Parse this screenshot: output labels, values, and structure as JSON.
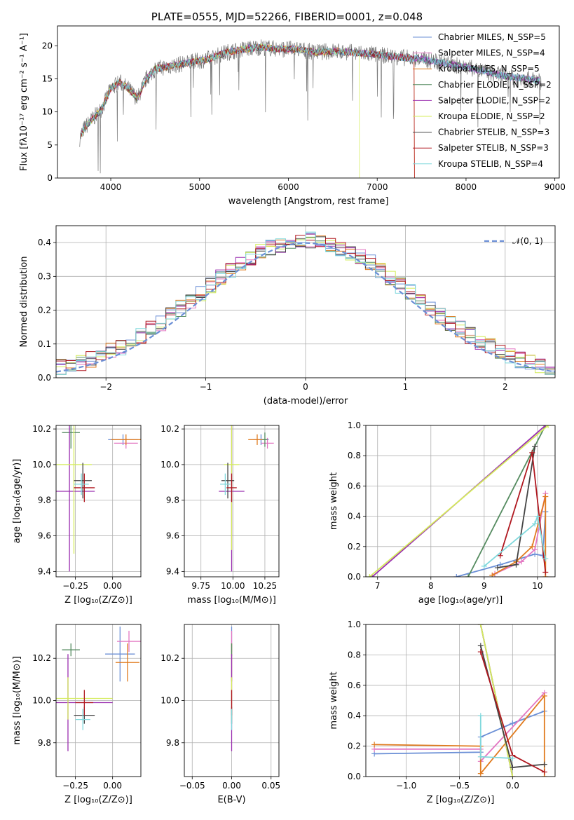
{
  "chart_data": [
    {
      "id": "spectrum",
      "type": "line",
      "title": "PLATE=0555, MJD=52266, FIBERID=0001, z=0.048",
      "xlabel": "wavelength [Angstrom, rest frame]",
      "ylabel": "Flux [fλ10⁻¹⁷ erg cm⁻² s⁻¹ A⁻¹]",
      "xlim": [
        3400,
        9050
      ],
      "ylim": [
        0,
        23
      ],
      "xticks": [
        4000,
        5000,
        6000,
        7000,
        8000,
        9000
      ],
      "yticks": [
        0,
        5,
        10,
        15,
        20
      ],
      "grid": false,
      "legend_position": "top-right",
      "data_envelope": {
        "x": [
          3650,
          3700,
          3800,
          3900,
          4000,
          4100,
          4200,
          4300,
          4400,
          4500,
          4700,
          4900,
          5100,
          5300,
          5500,
          5700,
          5900,
          6100,
          6300,
          6500,
          6700,
          6900,
          7100,
          7300,
          7500,
          7700,
          7900,
          8100,
          8300,
          8500,
          8700,
          8850
        ],
        "y": [
          6.0,
          7.5,
          9.0,
          10.5,
          13.5,
          14.5,
          13.5,
          12.0,
          15.0,
          16.5,
          17.0,
          17.5,
          18.0,
          19.0,
          19.5,
          19.8,
          19.5,
          19.5,
          19.0,
          19.2,
          19.0,
          18.8,
          18.5,
          18.2,
          18.0,
          17.5,
          17.0,
          16.5,
          15.8,
          15.3,
          15.0,
          14.6
        ]
      },
      "series": [
        {
          "name": "Chabrier MILES, N_SSP=5",
          "color": "#6b8fd6"
        },
        {
          "name": "Salpeter MILES, N_SSP=4",
          "color": "#e377c2"
        },
        {
          "name": "Kroupa MILES, N_SSP=5",
          "color": "#e07b1f"
        },
        {
          "name": "Chabrier ELODIE, N_SSP=2",
          "color": "#558b60"
        },
        {
          "name": "Salpeter ELODIE, N_SSP=2",
          "color": "#9b30b0"
        },
        {
          "name": "Kroupa ELODIE, N_SSP=2",
          "color": "#d4ec5a"
        },
        {
          "name": "Chabrier STELIB, N_SSP=3",
          "color": "#444444"
        },
        {
          "name": "Salpeter STELIB, N_SSP=3",
          "color": "#b01820"
        },
        {
          "name": "Kroupa STELIB, N_SSP=4",
          "color": "#7fd8dc"
        }
      ]
    },
    {
      "id": "residuals",
      "type": "line",
      "xlabel": "(data-model)/error",
      "ylabel": "Normed distribution",
      "xlim": [
        -2.5,
        2.5
      ],
      "ylim": [
        0,
        0.45
      ],
      "xticks": [
        -2,
        -1,
        0,
        1,
        2
      ],
      "yticks": [
        0.0,
        0.1,
        0.2,
        0.3,
        0.4
      ],
      "grid": true,
      "legend_position": "top-right",
      "reference_curve": {
        "name": "𝒩(0, 1)",
        "color": "#6b8fd6",
        "style": "dashed"
      },
      "histogram_bin_width": 0.1
    },
    {
      "id": "age_vs_Z",
      "type": "scatter",
      "xlabel": "Z [log₁₀(Z/Z⊙)]",
      "ylabel": "age  [log₁₀(age/yr)]",
      "xlim": [
        -0.38,
        0.19
      ],
      "ylim": [
        9.37,
        10.22
      ],
      "xticks": [
        -0.25,
        0.0
      ],
      "yticks": [
        9.4,
        9.6,
        9.8,
        10.0,
        10.2
      ],
      "grid": true,
      "points": [
        {
          "series": 0,
          "x": 0.07,
          "y": 10.14,
          "xerr": 0.1,
          "yerr": 0.03
        },
        {
          "series": 1,
          "x": 0.09,
          "y": 10.12,
          "xerr": 0.08,
          "yerr": 0.03
        },
        {
          "series": 2,
          "x": 0.09,
          "y": 10.14,
          "xerr": 0.1,
          "yerr": 0.03
        },
        {
          "series": 3,
          "x": -0.28,
          "y": 10.18,
          "xerr": 0.06,
          "yerr": 0.09
        },
        {
          "series": 4,
          "x": -0.29,
          "y": 9.85,
          "xerr": 0.17,
          "yerr": 0.45
        },
        {
          "series": 5,
          "x": -0.26,
          "y": 10.0,
          "xerr": 0.12,
          "yerr": 0.5
        },
        {
          "series": 6,
          "x": -0.2,
          "y": 9.91,
          "xerr": 0.06,
          "yerr": 0.1
        },
        {
          "series": 7,
          "x": -0.19,
          "y": 9.87,
          "xerr": 0.07,
          "yerr": 0.08
        },
        {
          "series": 8,
          "x": -0.21,
          "y": 9.89,
          "xerr": 0.05,
          "yerr": 0.06
        }
      ]
    },
    {
      "id": "age_vs_mass",
      "type": "scatter",
      "xlabel": "mass [log₁₀(M/M⊙)]",
      "xlim": [
        9.62,
        10.36
      ],
      "ylim": [
        9.37,
        10.22
      ],
      "xticks": [
        9.75,
        10.0,
        10.25
      ],
      "yticks": [
        9.4,
        9.6,
        9.8,
        10.0,
        10.2
      ],
      "grid": true,
      "points": [
        {
          "series": 0,
          "x": 10.22,
          "y": 10.14,
          "xerr": 0.06,
          "yerr": 0.03
        },
        {
          "series": 1,
          "x": 10.27,
          "y": 10.12,
          "xerr": 0.05,
          "yerr": 0.03
        },
        {
          "series": 2,
          "x": 10.19,
          "y": 10.14,
          "xerr": 0.07,
          "yerr": 0.03
        },
        {
          "series": 3,
          "x": 10.25,
          "y": 10.14,
          "xerr": 0.02,
          "yerr": 0.04
        },
        {
          "series": 4,
          "x": 9.99,
          "y": 9.85,
          "xerr": 0.1,
          "yerr": 0.45
        },
        {
          "series": 5,
          "x": 9.99,
          "y": 10.0,
          "xerr": 0.06,
          "yerr": 0.48
        },
        {
          "series": 6,
          "x": 9.96,
          "y": 9.91,
          "xerr": 0.05,
          "yerr": 0.1
        },
        {
          "series": 7,
          "x": 9.99,
          "y": 9.87,
          "xerr": 0.04,
          "yerr": 0.08
        },
        {
          "series": 8,
          "x": 9.94,
          "y": 9.89,
          "xerr": 0.04,
          "yerr": 0.06
        }
      ]
    },
    {
      "id": "weight_vs_age",
      "type": "line",
      "xlabel": "age  [log₁₀(age/yr)]",
      "ylabel": "mass weight",
      "xlim": [
        6.78,
        10.33
      ],
      "ylim": [
        0,
        1
      ],
      "xticks": [
        7,
        8,
        9,
        10
      ],
      "yticks": [
        0.0,
        0.2,
        0.4,
        0.6,
        0.8,
        1.0
      ],
      "grid": true,
      "series": [
        {
          "series": 0,
          "x": [
            8.48,
            9.3,
            9.95,
            10.1,
            10.15
          ],
          "y": [
            0.0,
            0.08,
            0.15,
            0.14,
            0.43
          ]
        },
        {
          "series": 1,
          "x": [
            9.2,
            9.7,
            9.95,
            10.15
          ],
          "y": [
            0.02,
            0.1,
            0.18,
            0.55
          ]
        },
        {
          "series": 2,
          "x": [
            9.15,
            9.6,
            9.9,
            10.15,
            10.15
          ],
          "y": [
            0.01,
            0.1,
            0.2,
            0.53,
            0.0
          ]
        },
        {
          "series": 3,
          "x": [
            8.7,
            10.15
          ],
          "y": [
            0.0,
            1.0
          ]
        },
        {
          "series": 4,
          "x": [
            6.9,
            10.15
          ],
          "y": [
            0.0,
            1.0
          ]
        },
        {
          "series": 5,
          "x": [
            6.85,
            10.2
          ],
          "y": [
            0.0,
            1.0
          ]
        },
        {
          "series": 6,
          "x": [
            9.25,
            9.6,
            9.95
          ],
          "y": [
            0.06,
            0.08,
            0.86
          ]
        },
        {
          "series": 7,
          "x": [
            9.3,
            9.9,
            10.15
          ],
          "y": [
            0.14,
            0.82,
            0.03
          ]
        },
        {
          "series": 8,
          "x": [
            9.0,
            9.95,
            10.0,
            10.15
          ],
          "y": [
            0.07,
            0.35,
            0.4,
            0.12
          ]
        }
      ]
    },
    {
      "id": "mass_vs_Z",
      "type": "scatter",
      "xlabel": "Z [log₁₀(Z/Z⊙)]",
      "ylabel": "mass [log₁₀(M/M⊙)]",
      "xlim": [
        -0.38,
        0.19
      ],
      "ylim": [
        9.64,
        10.36
      ],
      "xticks": [
        -0.25,
        0.0
      ],
      "yticks": [
        9.8,
        10.0,
        10.2
      ],
      "grid": true,
      "points": [
        {
          "series": 0,
          "x": 0.05,
          "y": 10.22,
          "xerr": 0.1,
          "yerr": 0.13
        },
        {
          "series": 1,
          "x": 0.11,
          "y": 10.28,
          "xerr": 0.08,
          "yerr": 0.05
        },
        {
          "series": 2,
          "x": 0.1,
          "y": 10.18,
          "xerr": 0.08,
          "yerr": 0.09
        },
        {
          "series": 3,
          "x": -0.28,
          "y": 10.24,
          "xerr": 0.06,
          "yerr": 0.03
        },
        {
          "series": 4,
          "x": -0.3,
          "y": 9.99,
          "xerr": 0.3,
          "yerr": 0.23
        },
        {
          "series": 5,
          "x": -0.3,
          "y": 10.01,
          "xerr": 0.3,
          "yerr": 0.1
        },
        {
          "series": 6,
          "x": -0.19,
          "y": 9.93,
          "xerr": 0.07,
          "yerr": 0.04
        },
        {
          "series": 7,
          "x": -0.19,
          "y": 9.99,
          "xerr": 0.06,
          "yerr": 0.06
        },
        {
          "series": 8,
          "x": -0.2,
          "y": 9.91,
          "xerr": 0.05,
          "yerr": 0.05
        }
      ]
    },
    {
      "id": "mass_vs_EBV",
      "type": "scatter",
      "xlabel": "E(B-V)",
      "xlim": [
        -0.06,
        0.06
      ],
      "ylim": [
        9.64,
        10.36
      ],
      "xticks": [
        -0.05,
        0.0,
        0.05
      ],
      "yticks": [
        9.8,
        10.0,
        10.2
      ],
      "grid": true,
      "points": [
        {
          "series": 0,
          "x": 0.0,
          "y": 10.22,
          "yerr": 0.13
        },
        {
          "series": 1,
          "x": 0.0,
          "y": 10.28,
          "yerr": 0.05
        },
        {
          "series": 2,
          "x": 0.0,
          "y": 10.18,
          "yerr": 0.09
        },
        {
          "series": 3,
          "x": 0.0,
          "y": 10.24,
          "yerr": 0.03
        },
        {
          "series": 4,
          "x": 0.0,
          "y": 9.99,
          "yerr": 0.23
        },
        {
          "series": 5,
          "x": 0.0,
          "y": 10.01,
          "yerr": 0.1
        },
        {
          "series": 6,
          "x": 0.0,
          "y": 9.93,
          "yerr": 0.04
        },
        {
          "series": 7,
          "x": 0.0,
          "y": 9.99,
          "yerr": 0.06
        },
        {
          "series": 8,
          "x": 0.0,
          "y": 9.91,
          "yerr": 0.05
        }
      ]
    },
    {
      "id": "weight_vs_Z",
      "type": "line",
      "xlabel": "Z [log₁₀(Z/Z⊙)]",
      "ylabel": "mass weight",
      "xlim": [
        -1.38,
        0.4
      ],
      "ylim": [
        0,
        1
      ],
      "xticks": [
        -1.0,
        -0.5,
        0.0
      ],
      "yticks": [
        0.0,
        0.2,
        0.4,
        0.6,
        0.8,
        1.0
      ],
      "grid": true,
      "series": [
        {
          "series": 0,
          "x": [
            -1.3,
            -0.3,
            -0.3,
            0.0,
            0.3
          ],
          "y": [
            0.15,
            0.16,
            0.26,
            0.35,
            0.43
          ]
        },
        {
          "series": 1,
          "x": [
            -1.3,
            -0.3,
            -0.3,
            0.3
          ],
          "y": [
            0.18,
            0.18,
            0.1,
            0.55
          ]
        },
        {
          "series": 2,
          "x": [
            -1.3,
            -0.3,
            -0.3,
            0.3,
            0.3
          ],
          "y": [
            0.21,
            0.2,
            0.02,
            0.53,
            0.0
          ]
        },
        {
          "series": 3,
          "x": [
            -0.3,
            0.0
          ],
          "y": [
            1.0,
            0.0
          ]
        },
        {
          "series": 4,
          "x": [
            -0.3,
            0.0
          ],
          "y": [
            1.0,
            0.0
          ]
        },
        {
          "series": 5,
          "x": [
            -0.3,
            0.0
          ],
          "y": [
            1.0,
            0.0
          ]
        },
        {
          "series": 6,
          "x": [
            -0.3,
            0.0,
            0.3
          ],
          "y": [
            0.86,
            0.06,
            0.08
          ]
        },
        {
          "series": 7,
          "x": [
            -0.3,
            0.0,
            0.3
          ],
          "y": [
            0.82,
            0.14,
            0.03
          ]
        },
        {
          "series": 8,
          "x": [
            -0.3,
            -0.3,
            0.0
          ],
          "y": [
            0.4,
            0.13,
            0.12
          ]
        }
      ]
    }
  ]
}
